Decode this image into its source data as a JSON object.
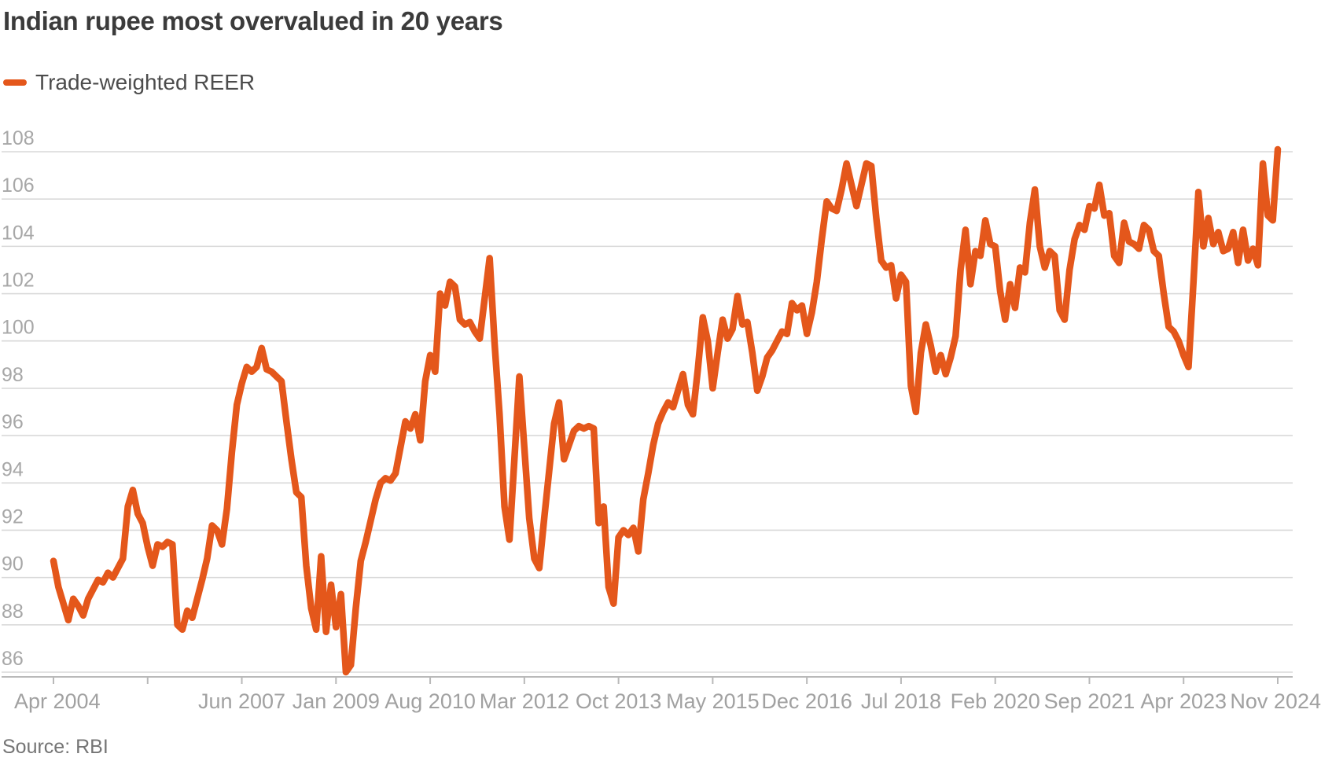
{
  "header": {
    "title": "Indian rupee most overvalued in 20 years"
  },
  "legend": {
    "label": "Trade-weighted REER",
    "swatch_color": "#e4571b"
  },
  "footer": {
    "source": "Source: RBI"
  },
  "chart_data": {
    "type": "line",
    "title": "Indian rupee most overvalued in 20 years",
    "xlabel": "",
    "ylabel": "",
    "ylim": [
      86,
      108
    ],
    "y_ticks": [
      86,
      88,
      90,
      92,
      94,
      96,
      98,
      100,
      102,
      104,
      106,
      108
    ],
    "grid": "horizontal",
    "legend_position": "top-left",
    "x_start": "Apr 2004",
    "x_end": "Nov 2024",
    "frequency": "monthly",
    "x_tick_labels": [
      "Apr 2004",
      "Jun 2007",
      "Jan 2009",
      "Aug 2010",
      "Mar 2012",
      "Oct 2013",
      "May 2015",
      "Dec 2016",
      "Jul 2018",
      "Feb 2020",
      "Sep 2021",
      "Apr 2023",
      "Nov 2024"
    ],
    "x_tick_months": [
      0,
      38,
      57,
      76,
      95,
      114,
      133,
      152,
      171,
      190,
      209,
      228,
      247
    ],
    "x_minor_tick_months": [
      0,
      19,
      38,
      57,
      76,
      95,
      114,
      133,
      152,
      171,
      190,
      209,
      228,
      247
    ],
    "series": [
      {
        "name": "Trade-weighted REER",
        "color": "#e4571b",
        "values": [
          90.7,
          89.6,
          88.9,
          88.2,
          89.1,
          88.8,
          88.4,
          89.1,
          89.5,
          89.9,
          89.8,
          90.2,
          90.0,
          90.4,
          90.8,
          93.0,
          93.7,
          92.7,
          92.3,
          91.3,
          90.5,
          91.4,
          91.3,
          91.5,
          91.4,
          88.0,
          87.8,
          88.6,
          88.3,
          89.1,
          89.9,
          90.8,
          92.2,
          92.0,
          91.4,
          92.9,
          95.3,
          97.3,
          98.2,
          98.9,
          98.7,
          98.9,
          99.7,
          98.8,
          98.7,
          98.5,
          98.3,
          96.6,
          95.0,
          93.6,
          93.4,
          90.5,
          88.7,
          87.8,
          90.9,
          87.7,
          89.7,
          87.9,
          89.3,
          86.0,
          86.3,
          88.7,
          90.7,
          91.5,
          92.4,
          93.3,
          94.0,
          94.2,
          94.1,
          94.4,
          95.5,
          96.6,
          96.3,
          96.9,
          95.8,
          98.3,
          99.4,
          98.7,
          102.0,
          101.5,
          102.5,
          102.3,
          100.9,
          100.7,
          100.8,
          100.4,
          100.1,
          101.8,
          103.5,
          99.9,
          96.9,
          93.0,
          91.6,
          95.0,
          98.5,
          95.5,
          92.5,
          90.8,
          90.4,
          92.5,
          94.5,
          96.5,
          97.4,
          95.0,
          95.6,
          96.2,
          96.4,
          96.3,
          96.4,
          96.3,
          92.3,
          93.0,
          89.6,
          88.9,
          91.7,
          92.0,
          91.8,
          92.1,
          91.1,
          93.3,
          94.4,
          95.6,
          96.5,
          97.0,
          97.4,
          97.2,
          97.9,
          98.6,
          97.3,
          96.9,
          98.8,
          101.0,
          100.0,
          98.0,
          99.5,
          100.9,
          100.1,
          100.5,
          101.9,
          100.7,
          100.8,
          99.5,
          97.9,
          98.5,
          99.3,
          99.6,
          100.0,
          100.4,
          100.3,
          101.6,
          101.3,
          101.5,
          100.3,
          101.2,
          102.5,
          104.3,
          105.9,
          105.6,
          105.5,
          106.4,
          107.5,
          106.6,
          105.7,
          106.6,
          107.5,
          107.4,
          105.2,
          103.4,
          103.1,
          103.2,
          101.8,
          102.8,
          102.5,
          98.1,
          97.0,
          99.5,
          100.7,
          99.8,
          98.7,
          99.4,
          98.6,
          99.3,
          100.2,
          103.0,
          104.7,
          102.4,
          103.8,
          103.6,
          105.1,
          104.1,
          104.0,
          102.1,
          100.9,
          102.4,
          101.4,
          103.1,
          102.9,
          105.0,
          106.4,
          104.0,
          103.1,
          103.8,
          103.6,
          101.3,
          100.9,
          103.0,
          104.3,
          104.9,
          104.7,
          105.7,
          105.6,
          106.6,
          105.3,
          105.4,
          103.6,
          103.3,
          105.0,
          104.2,
          104.1,
          103.9,
          104.9,
          104.7,
          103.8,
          103.6,
          102.0,
          100.6,
          100.4,
          100.0,
          99.4,
          98.9,
          102.5,
          106.3,
          104.0,
          105.2,
          104.1,
          104.6,
          103.8,
          103.9,
          104.6,
          103.3,
          104.7,
          103.4,
          103.9,
          103.2,
          107.5,
          105.3,
          105.1,
          108.1
        ]
      }
    ],
    "source": "Source: RBI"
  },
  "colors": {
    "line": "#e4571b",
    "gridline": "#d9d9d9",
    "axis": "#b9b9b9",
    "y_tick_label": "#a7a7a7",
    "x_tick_label": "#a1a1a1",
    "title": "#3b3b3b",
    "legend_text": "#4c4c4c",
    "source_text": "#757575"
  }
}
